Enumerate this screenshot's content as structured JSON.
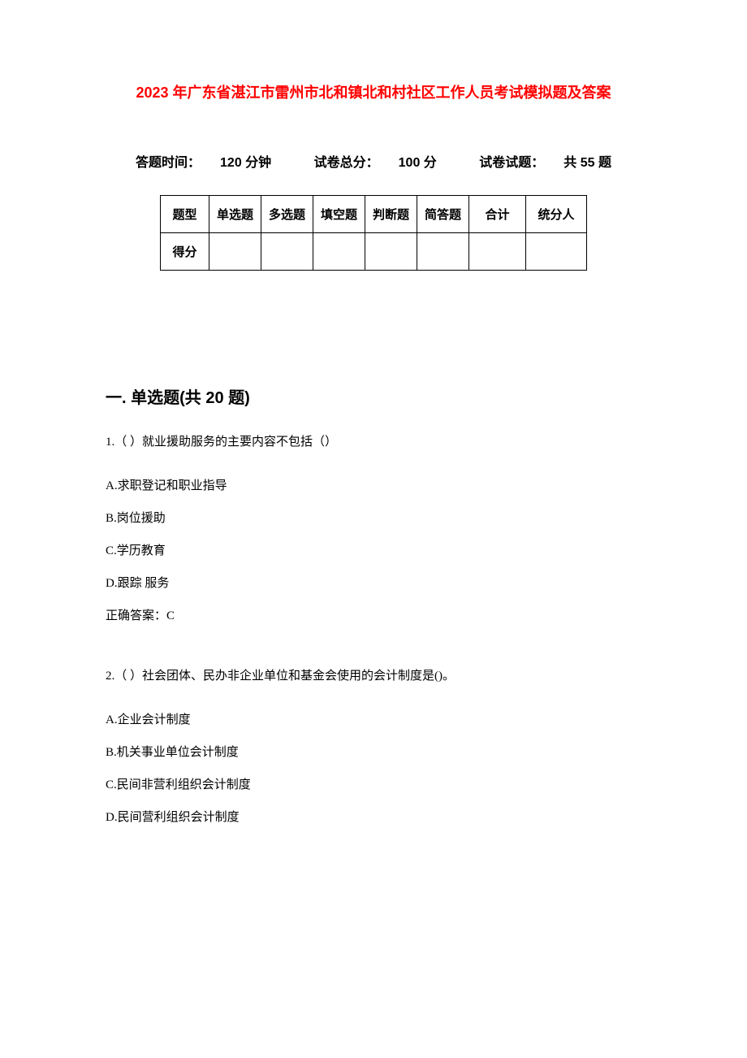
{
  "title": "2023 年广东省湛江市雷州市北和镇北和村社区工作人员考试模拟题及答案",
  "exam_info": {
    "time_label": "答题时间：",
    "time_value": "120 分钟",
    "score_label": "试卷总分：",
    "score_value": "100 分",
    "count_label": "试卷试题：",
    "count_value": "共 55 题"
  },
  "score_table": {
    "row1_label": "题型",
    "row2_label": "得分",
    "columns": [
      "单选题",
      "多选题",
      "填空题",
      "判断题",
      "简答题",
      "合计",
      "统分人"
    ]
  },
  "section1": {
    "title": "一. 单选题(共 20 题)",
    "q1": {
      "stem": "1.（ ）就业援助服务的主要内容不包括（）",
      "opt_a": "A.求职登记和职业指导",
      "opt_b": "B.岗位援助",
      "opt_c": "C.学历教育",
      "opt_d": "D.跟踪  服务",
      "answer": "正确答案：C"
    },
    "q2": {
      "stem": "2.（ ）社会团体、民办非企业单位和基金会使用的会计制度是()。",
      "opt_a": "A.企业会计制度",
      "opt_b": "B.机关事业单位会计制度",
      "opt_c": "C.民间非营利组织会计制度",
      "opt_d": "D.民间营利组织会计制度"
    }
  },
  "colors": {
    "title_color": "#ff0000",
    "text_color": "#000000",
    "background": "#ffffff",
    "border_color": "#000000"
  }
}
